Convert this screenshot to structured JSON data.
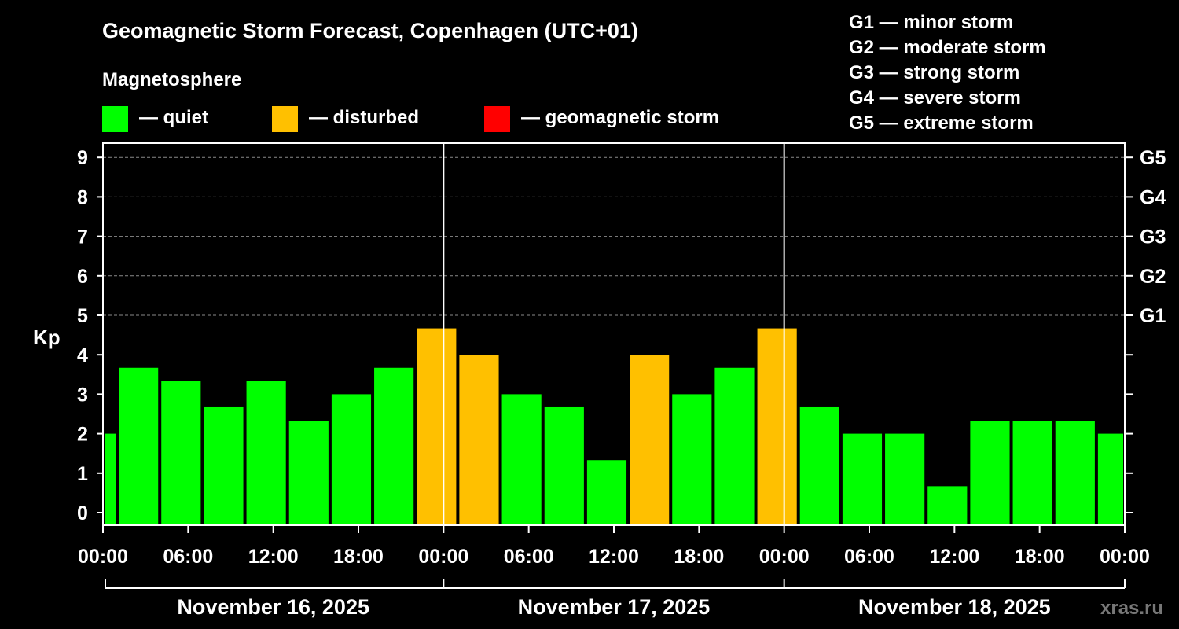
{
  "title": "Geomagnetic Storm Forecast, Copenhagen (UTC+01)",
  "legend": {
    "heading": "Magnetosphere",
    "items": [
      {
        "label": "— quiet",
        "color": "#00ff00"
      },
      {
        "label": "— disturbed",
        "color": "#ffc000"
      },
      {
        "label": "— geomagnetic storm",
        "color": "#ff0000"
      }
    ]
  },
  "storm_scale": [
    "G1 — minor storm",
    "G2 — moderate storm",
    "G3 — strong storm",
    "G4 — severe storm",
    "G5 — extreme storm"
  ],
  "watermark": "xras.ru",
  "chart_data": {
    "type": "bar",
    "title": "Geomagnetic Storm Forecast, Copenhagen (UTC+01)",
    "ylabel": "Kp",
    "ylim": [
      0,
      9
    ],
    "yticks": [
      0,
      1,
      2,
      3,
      4,
      5,
      6,
      7,
      8,
      9
    ],
    "right_ticks": [
      {
        "kp": 5,
        "label": "G1"
      },
      {
        "kp": 6,
        "label": "G2"
      },
      {
        "kp": 7,
        "label": "G3"
      },
      {
        "kp": 8,
        "label": "G4"
      },
      {
        "kp": 9,
        "label": "G5"
      }
    ],
    "xlim_hours": [
      0,
      72
    ],
    "xticks": [
      {
        "hour": 0,
        "label": "00:00"
      },
      {
        "hour": 6,
        "label": "06:00"
      },
      {
        "hour": 12,
        "label": "12:00"
      },
      {
        "hour": 18,
        "label": "18:00"
      },
      {
        "hour": 24,
        "label": "00:00"
      },
      {
        "hour": 30,
        "label": "06:00"
      },
      {
        "hour": 36,
        "label": "12:00"
      },
      {
        "hour": 42,
        "label": "18:00"
      },
      {
        "hour": 48,
        "label": "00:00"
      },
      {
        "hour": 54,
        "label": "06:00"
      },
      {
        "hour": 60,
        "label": "12:00"
      },
      {
        "hour": 66,
        "label": "18:00"
      },
      {
        "hour": 72,
        "label": "00:00"
      }
    ],
    "day_boundaries_hours": [
      24,
      48
    ],
    "days": [
      {
        "label": "November 16, 2025",
        "start": 0,
        "end": 24
      },
      {
        "label": "November 17, 2025",
        "start": 24,
        "end": 48
      },
      {
        "label": "November 18, 2025",
        "start": 48,
        "end": 72
      }
    ],
    "bars": [
      {
        "start": 0,
        "end": 1,
        "kp": 2.0,
        "state": "quiet"
      },
      {
        "start": 1,
        "end": 4,
        "kp": 3.67,
        "state": "quiet"
      },
      {
        "start": 4,
        "end": 7,
        "kp": 3.33,
        "state": "quiet"
      },
      {
        "start": 7,
        "end": 10,
        "kp": 2.67,
        "state": "quiet"
      },
      {
        "start": 10,
        "end": 13,
        "kp": 3.33,
        "state": "quiet"
      },
      {
        "start": 13,
        "end": 16,
        "kp": 2.33,
        "state": "quiet"
      },
      {
        "start": 16,
        "end": 19,
        "kp": 3.0,
        "state": "quiet"
      },
      {
        "start": 19,
        "end": 22,
        "kp": 3.67,
        "state": "quiet"
      },
      {
        "start": 22,
        "end": 25,
        "kp": 4.67,
        "state": "disturbed"
      },
      {
        "start": 25,
        "end": 28,
        "kp": 4.0,
        "state": "disturbed"
      },
      {
        "start": 28,
        "end": 31,
        "kp": 3.0,
        "state": "quiet"
      },
      {
        "start": 31,
        "end": 34,
        "kp": 2.67,
        "state": "quiet"
      },
      {
        "start": 34,
        "end": 37,
        "kp": 1.33,
        "state": "quiet"
      },
      {
        "start": 37,
        "end": 40,
        "kp": 4.0,
        "state": "disturbed"
      },
      {
        "start": 40,
        "end": 43,
        "kp": 3.0,
        "state": "quiet"
      },
      {
        "start": 43,
        "end": 46,
        "kp": 3.67,
        "state": "quiet"
      },
      {
        "start": 46,
        "end": 49,
        "kp": 4.67,
        "state": "disturbed"
      },
      {
        "start": 49,
        "end": 52,
        "kp": 2.67,
        "state": "quiet"
      },
      {
        "start": 52,
        "end": 55,
        "kp": 2.0,
        "state": "quiet"
      },
      {
        "start": 55,
        "end": 58,
        "kp": 2.0,
        "state": "quiet"
      },
      {
        "start": 58,
        "end": 61,
        "kp": 0.67,
        "state": "quiet"
      },
      {
        "start": 61,
        "end": 64,
        "kp": 2.33,
        "state": "quiet"
      },
      {
        "start": 64,
        "end": 67,
        "kp": 2.33,
        "state": "quiet"
      },
      {
        "start": 67,
        "end": 70,
        "kp": 2.33,
        "state": "quiet"
      },
      {
        "start": 70,
        "end": 72,
        "kp": 2.0,
        "state": "quiet"
      }
    ],
    "state_colors": {
      "quiet": "#00ff00",
      "disturbed": "#ffc000",
      "storm": "#ff0000"
    }
  }
}
